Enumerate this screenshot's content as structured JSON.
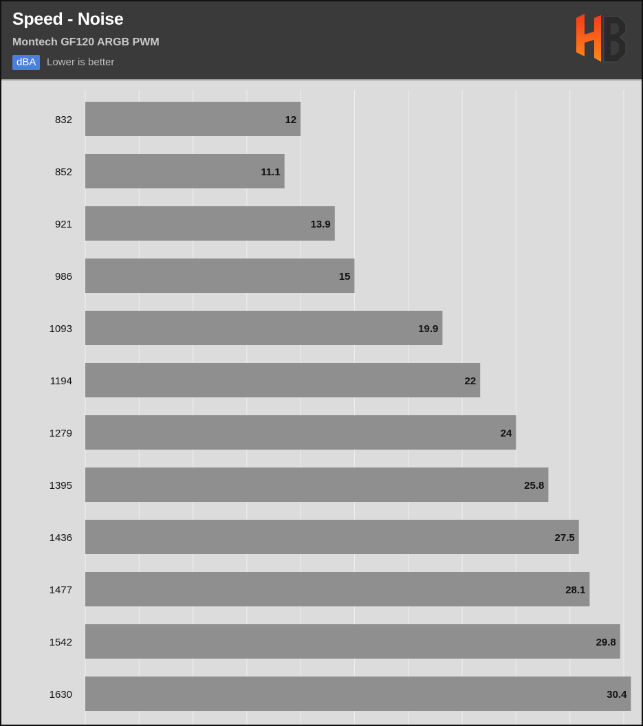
{
  "header": {
    "title": "Speed - Noise",
    "subtitle": "Montech GF120 ARGB PWM",
    "unit": "dBA",
    "note": "Lower is better"
  },
  "colors": {
    "header_bg": "#3a3a3a",
    "plot_bg": "#dcdcdc",
    "bar": "#8f8f8f",
    "unit_badge": "#4a7fe0",
    "logo_gradient_top": "#f23a1a",
    "logo_gradient_bottom": "#ff8a1c"
  },
  "icons": {
    "logo": "hb-logo"
  },
  "chart_data": {
    "type": "bar",
    "orientation": "horizontal",
    "categories": [
      "832",
      "852",
      "921",
      "986",
      "1093",
      "1194",
      "1279",
      "1395",
      "1436",
      "1477",
      "1542",
      "1630"
    ],
    "values": [
      12,
      11.1,
      13.9,
      15,
      19.9,
      22,
      24,
      25.8,
      27.5,
      28.1,
      29.8,
      30.4
    ],
    "xlim": [
      0,
      30
    ],
    "grid": "vertical",
    "gridlines": 10,
    "data_labels": true,
    "legend": "none"
  }
}
